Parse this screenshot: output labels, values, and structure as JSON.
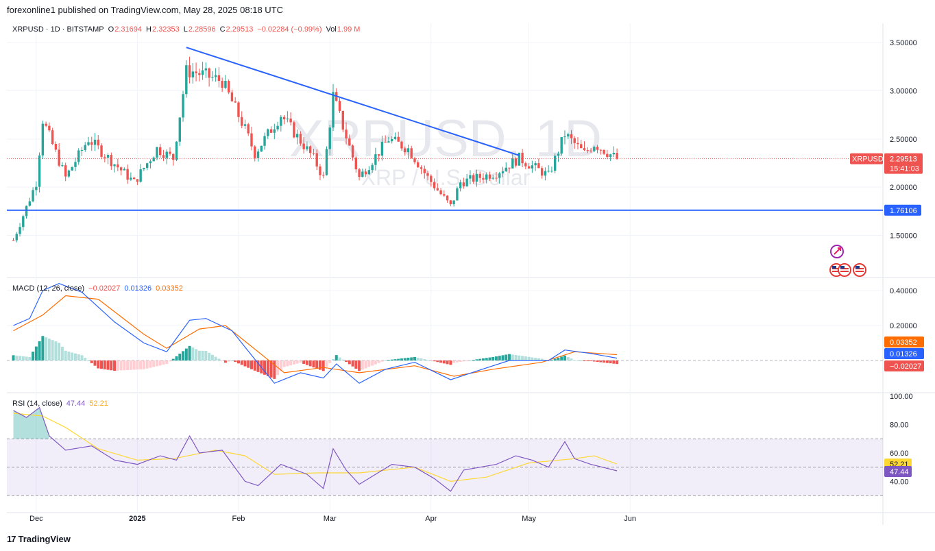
{
  "header": {
    "published": "forexonline1 published on TradingView.com, May 28, 2025 08:18 UTC"
  },
  "legend": {
    "symbol": "XRPUSD · 1D · BITSTAMP",
    "o_label": "O",
    "o_value": "2.31694",
    "h_label": "H",
    "h_value": "2.32353",
    "l_label": "L",
    "l_value": "2.28596",
    "c_label": "C",
    "c_value": "2.29513",
    "change": "−0.02284 (−0.99%)",
    "vol_label": "Vol",
    "vol_value": "1.99 M"
  },
  "watermark": {
    "line1": "XRPUSD, 1D",
    "line2": "XRP / U.S. Dollar"
  },
  "price_tag": {
    "symbol": "XRPUSD",
    "value": "2.29513",
    "countdown": "15:41:03"
  },
  "support_tag": "1.76106",
  "macd_legend": {
    "name": "MACD (12, 26, close)",
    "hist": "−0.02027",
    "macd": "0.01326",
    "signal": "0.03352"
  },
  "rsi_legend": {
    "name": "RSI (14, close)",
    "rsi": "47.44",
    "ma": "52.21"
  },
  "footer": {
    "logo_glyph": "17",
    "brand": "TradingView"
  },
  "colors": {
    "up": "#26a69a",
    "down": "#ef5350",
    "trend": "#2962ff",
    "macd": "#2962ff",
    "signal": "#ff6d00",
    "rsi": "#7e57c2",
    "rsi_ma": "#fdd835"
  },
  "chart_data": [
    {
      "type": "candlestick",
      "title": "XRPUSD · 1D · BITSTAMP",
      "x_ticks": [
        "Dec",
        "2025",
        "Feb",
        "Mar",
        "Apr",
        "May",
        "Jun"
      ],
      "y_ticks": [
        "3.50000",
        "3.00000",
        "2.50000",
        "2.00000",
        "1.50000"
      ],
      "ylim": [
        1.07,
        3.7
      ],
      "support_level": 1.76106,
      "trendline": {
        "from": {
          "date": "2025-01-16",
          "price": 3.45
        },
        "to": {
          "date": "2025-04-28",
          "price": 2.33
        }
      },
      "key_points": [
        {
          "date": "2024-11-24",
          "price": 1.45
        },
        {
          "date": "2024-12-01",
          "price": 2.05
        },
        {
          "date": "2024-12-03",
          "price": 2.7
        },
        {
          "date": "2024-12-10",
          "price": 2.1
        },
        {
          "date": "2024-12-17",
          "price": 2.5
        },
        {
          "date": "2024-12-31",
          "price": 2.05
        },
        {
          "date": "2025-01-07",
          "price": 2.4
        },
        {
          "date": "2025-01-12",
          "price": 2.3
        },
        {
          "date": "2025-01-16",
          "price": 3.2
        },
        {
          "date": "2025-01-18",
          "price": 3.2
        },
        {
          "date": "2025-01-27",
          "price": 3.1
        },
        {
          "date": "2025-02-03",
          "price": 2.6
        },
        {
          "date": "2025-02-06",
          "price": 2.35
        },
        {
          "date": "2025-02-14",
          "price": 2.75
        },
        {
          "date": "2025-02-24",
          "price": 2.3
        },
        {
          "date": "2025-02-27",
          "price": 2.1
        },
        {
          "date": "2025-03-02",
          "price": 2.95
        },
        {
          "date": "2025-03-10",
          "price": 2.1
        },
        {
          "date": "2025-03-19",
          "price": 2.5
        },
        {
          "date": "2025-03-25",
          "price": 2.4
        },
        {
          "date": "2025-03-31",
          "price": 2.1
        },
        {
          "date": "2025-04-07",
          "price": 1.8
        },
        {
          "date": "2025-04-10",
          "price": 2.05
        },
        {
          "date": "2025-04-21",
          "price": 2.15
        },
        {
          "date": "2025-04-28",
          "price": 2.3
        },
        {
          "date": "2025-05-07",
          "price": 2.12
        },
        {
          "date": "2025-05-12",
          "price": 2.55
        },
        {
          "date": "2025-05-18",
          "price": 2.35
        },
        {
          "date": "2025-05-21",
          "price": 2.45
        },
        {
          "date": "2025-05-28",
          "price": 2.295
        }
      ],
      "last_price": 2.29513
    },
    {
      "type": "line",
      "title": "MACD (12, 26, close)",
      "y_ticks": [
        "0.40000",
        "0.20000"
      ],
      "ylim": [
        -0.18,
        0.47
      ],
      "series": [
        {
          "name": "MACD",
          "points": [
            [
              "2024-11-24",
              0.2
            ],
            [
              "2024-11-29",
              0.24
            ],
            [
              "2024-12-03",
              0.4
            ],
            [
              "2024-12-08",
              0.44
            ],
            [
              "2024-12-15",
              0.39
            ],
            [
              "2024-12-25",
              0.22
            ],
            [
              "2025-01-03",
              0.1
            ],
            [
              "2025-01-10",
              0.05
            ],
            [
              "2025-01-17",
              0.23
            ],
            [
              "2025-01-22",
              0.24
            ],
            [
              "2025-01-30",
              0.17
            ],
            [
              "2025-02-05",
              0.03
            ],
            [
              "2025-02-12",
              -0.13
            ],
            [
              "2025-02-20",
              -0.07
            ],
            [
              "2025-02-27",
              -0.1
            ],
            [
              "2025-03-03",
              -0.02
            ],
            [
              "2025-03-10",
              -0.13
            ],
            [
              "2025-03-18",
              -0.05
            ],
            [
              "2025-03-27",
              -0.01
            ],
            [
              "2025-04-07",
              -0.11
            ],
            [
              "2025-04-15",
              -0.06
            ],
            [
              "2025-04-25",
              0.0
            ],
            [
              "2025-05-07",
              0.0
            ],
            [
              "2025-05-12",
              0.06
            ],
            [
              "2025-05-20",
              0.04
            ],
            [
              "2025-05-28",
              0.0133
            ]
          ]
        },
        {
          "name": "Signal",
          "points": [
            [
              "2024-11-24",
              0.17
            ],
            [
              "2024-12-03",
              0.26
            ],
            [
              "2024-12-10",
              0.37
            ],
            [
              "2024-12-20",
              0.35
            ],
            [
              "2025-01-03",
              0.15
            ],
            [
              "2025-01-10",
              0.07
            ],
            [
              "2025-01-20",
              0.18
            ],
            [
              "2025-01-28",
              0.2
            ],
            [
              "2025-02-05",
              0.08
            ],
            [
              "2025-02-15",
              -0.07
            ],
            [
              "2025-02-27",
              -0.04
            ],
            [
              "2025-03-10",
              -0.07
            ],
            [
              "2025-03-27",
              -0.03
            ],
            [
              "2025-04-08",
              -0.09
            ],
            [
              "2025-04-20",
              -0.05
            ],
            [
              "2025-05-05",
              -0.01
            ],
            [
              "2025-05-15",
              0.05
            ],
            [
              "2025-05-28",
              0.0335
            ]
          ]
        }
      ]
    },
    {
      "type": "line",
      "title": "RSI (14, close)",
      "y_ticks": [
        "100.00",
        "80.00",
        "60.00",
        "40.00"
      ],
      "ylim": [
        18,
        102
      ],
      "bands": [
        70,
        50,
        30
      ],
      "series": [
        {
          "name": "RSI",
          "points": [
            [
              "2024-11-24",
              90
            ],
            [
              "2024-11-28",
              85
            ],
            [
              "2024-12-02",
              92
            ],
            [
              "2024-12-05",
              72
            ],
            [
              "2024-12-10",
              62
            ],
            [
              "2024-12-18",
              65
            ],
            [
              "2024-12-25",
              55
            ],
            [
              "2025-01-01",
              52
            ],
            [
              "2025-01-08",
              58
            ],
            [
              "2025-01-13",
              55
            ],
            [
              "2025-01-17",
              72
            ],
            [
              "2025-01-20",
              60
            ],
            [
              "2025-01-27",
              62
            ],
            [
              "2025-02-03",
              40
            ],
            [
              "2025-02-07",
              37
            ],
            [
              "2025-02-14",
              52
            ],
            [
              "2025-02-22",
              45
            ],
            [
              "2025-02-27",
              35
            ],
            [
              "2025-03-02",
              63
            ],
            [
              "2025-03-06",
              48
            ],
            [
              "2025-03-10",
              38
            ],
            [
              "2025-03-20",
              52
            ],
            [
              "2025-03-27",
              50
            ],
            [
              "2025-04-02",
              42
            ],
            [
              "2025-04-07",
              33
            ],
            [
              "2025-04-11",
              48
            ],
            [
              "2025-04-21",
              52
            ],
            [
              "2025-04-27",
              58
            ],
            [
              "2025-05-02",
              55
            ],
            [
              "2025-05-07",
              50
            ],
            [
              "2025-05-12",
              68
            ],
            [
              "2025-05-15",
              56
            ],
            [
              "2025-05-20",
              52
            ],
            [
              "2025-05-28",
              47.44
            ]
          ]
        },
        {
          "name": "RSI MA",
          "points": [
            [
              "2024-11-24",
              88
            ],
            [
              "2024-12-03",
              86
            ],
            [
              "2024-12-10",
              78
            ],
            [
              "2024-12-20",
              63
            ],
            [
              "2025-01-01",
              55
            ],
            [
              "2025-01-12",
              56
            ],
            [
              "2025-01-25",
              62
            ],
            [
              "2025-02-03",
              58
            ],
            [
              "2025-02-12",
              45
            ],
            [
              "2025-02-25",
              46
            ],
            [
              "2025-03-10",
              46
            ],
            [
              "2025-03-27",
              50
            ],
            [
              "2025-04-07",
              40
            ],
            [
              "2025-04-18",
              43
            ],
            [
              "2025-05-01",
              53
            ],
            [
              "2025-05-15",
              56
            ],
            [
              "2025-05-21",
              58
            ],
            [
              "2025-05-28",
              52.21
            ]
          ]
        }
      ]
    }
  ]
}
